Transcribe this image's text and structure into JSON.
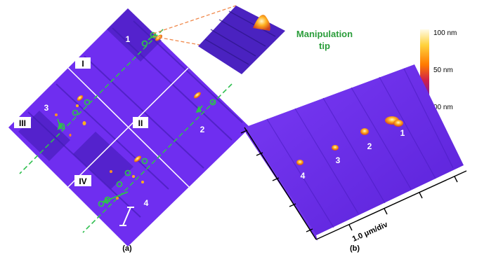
{
  "panel_a": {
    "label": "(a)",
    "quadrants": [
      "I",
      "II",
      "III",
      "IV"
    ],
    "particle_labels": [
      "1",
      "2",
      "3",
      "4"
    ]
  },
  "inset": {
    "title_line1": "Manipulation",
    "title_line2": "tip"
  },
  "colorbar": {
    "labels": [
      "100 nm",
      "50 nm",
      "00 nm"
    ],
    "colors": [
      "#fffbe6",
      "#ffd23c",
      "#ff7a00",
      "#d0204a",
      "#7a1aa0",
      "#1a0a4a"
    ]
  },
  "panel_b": {
    "label": "(b)",
    "axis_label": "1.0 μm/div",
    "particle_labels": [
      "1",
      "2",
      "3",
      "4"
    ]
  },
  "colors": {
    "surface": "#6f2ef0",
    "surface_dark": "#3c1aa8",
    "path": "#2fbf4f",
    "callout": "#f0884a",
    "tip_label": "#2a9d3a"
  }
}
